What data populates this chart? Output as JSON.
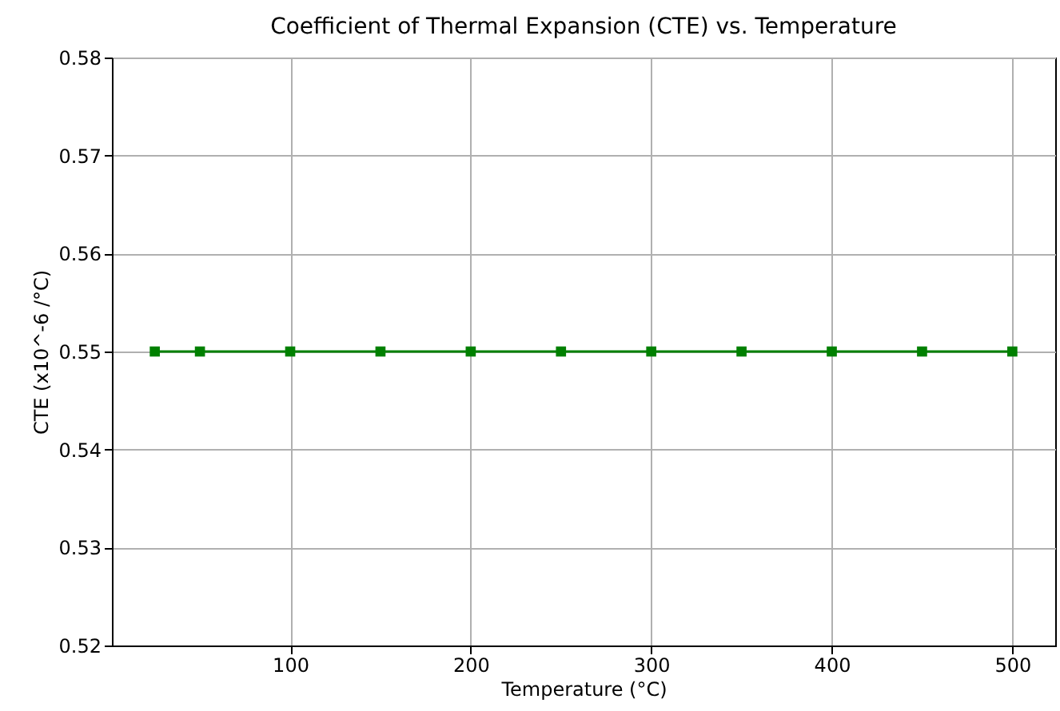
{
  "chart_data": {
    "type": "line",
    "title": "Coefficient of Thermal Expansion (CTE) vs. Temperature",
    "xlabel": "Temperature (°C)",
    "ylabel": "CTE (x10^-6 /°C)",
    "x": [
      25,
      50,
      100,
      150,
      200,
      250,
      300,
      350,
      400,
      450,
      500
    ],
    "series": [
      {
        "color": "#008000",
        "values": [
          0.55,
          0.55,
          0.55,
          0.55,
          0.55,
          0.55,
          0.55,
          0.55,
          0.55,
          0.55,
          0.55
        ]
      }
    ],
    "xlim": [
      1.25,
      523.75
    ],
    "xticks": [
      100,
      200,
      300,
      400,
      500
    ],
    "ylim": [
      0.52,
      0.58
    ],
    "yticks": [
      0.52,
      0.53,
      0.54,
      0.55,
      0.56,
      0.57,
      0.58
    ],
    "grid": true,
    "marker": "square",
    "line_style": "solid",
    "legend": false
  }
}
